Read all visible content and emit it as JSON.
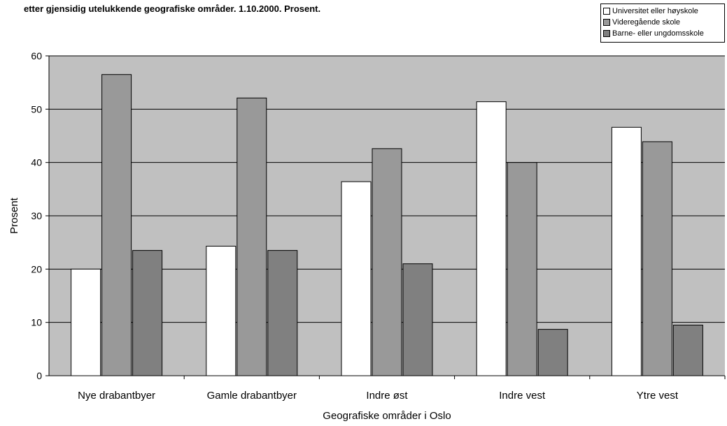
{
  "chart_data": {
    "type": "bar",
    "title": "etter gjensidig utelukkende geografiske områder. 1.10.2000. Prosent.",
    "xlabel": "Geografiske områder i Oslo",
    "ylabel": "Prosent",
    "ylim": [
      0,
      60
    ],
    "yticks": [
      "0",
      "10",
      "20",
      "30",
      "40",
      "50",
      "60"
    ],
    "grid": true,
    "legend_position": "top-right",
    "plot_background": "#c0c0c0",
    "categories": [
      "Nye drabantbyer",
      "Gamle drabantbyer",
      "Indre øst",
      "Indre vest",
      "Ytre vest"
    ],
    "series": [
      {
        "name": "Universitet eller høyskole",
        "color": "#ffffff",
        "values": [
          20,
          24.3,
          36.4,
          51.4,
          46.6
        ]
      },
      {
        "name": "Videregående skole",
        "color": "#999999",
        "values": [
          56.5,
          52.1,
          42.6,
          40,
          43.9
        ]
      },
      {
        "name": "Barne- eller ungdomsskole",
        "color": "#808080",
        "values": [
          23.5,
          23.5,
          21,
          8.7,
          9.5
        ]
      }
    ]
  }
}
